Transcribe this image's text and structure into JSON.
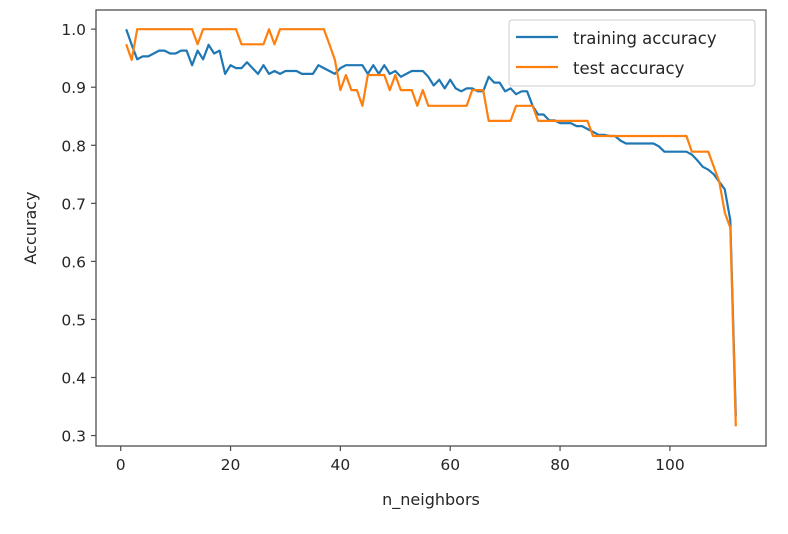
{
  "chart_data": {
    "type": "line",
    "title": "",
    "xlabel": "n_neighbors",
    "ylabel": "Accuracy",
    "xlim": [
      -4.5,
      117.5
    ],
    "ylim": [
      0.282,
      1.033
    ],
    "xticks": [
      0,
      20,
      40,
      60,
      80,
      100
    ],
    "xtick_labels": [
      "0",
      "20",
      "40",
      "60",
      "80",
      "100"
    ],
    "yticks": [
      0.3,
      0.4,
      0.5,
      0.6,
      0.7,
      0.8,
      0.9,
      1.0
    ],
    "ytick_labels": [
      "0.3",
      "0.4",
      "0.5",
      "0.6",
      "0.7",
      "0.8",
      "0.9",
      "1.0"
    ],
    "grid": false,
    "legend_position": "upper right",
    "x": [
      1,
      2,
      3,
      4,
      5,
      6,
      7,
      8,
      9,
      10,
      11,
      12,
      13,
      14,
      15,
      16,
      17,
      18,
      19,
      20,
      21,
      22,
      23,
      24,
      25,
      26,
      27,
      28,
      29,
      30,
      31,
      32,
      33,
      34,
      35,
      36,
      37,
      38,
      39,
      40,
      41,
      42,
      43,
      44,
      45,
      46,
      47,
      48,
      49,
      50,
      51,
      52,
      53,
      54,
      55,
      56,
      57,
      58,
      59,
      60,
      61,
      62,
      63,
      64,
      65,
      66,
      67,
      68,
      69,
      70,
      71,
      72,
      73,
      74,
      75,
      76,
      77,
      78,
      79,
      80,
      81,
      82,
      83,
      84,
      85,
      86,
      87,
      88,
      89,
      90,
      91,
      92,
      93,
      94,
      95,
      96,
      97,
      98,
      99,
      100,
      101,
      102,
      103,
      104,
      105,
      106,
      107,
      108,
      109,
      110,
      111,
      112
    ],
    "series": [
      {
        "name": "training accuracy",
        "color": "#1f77b4",
        "values": [
          1.0,
          0.973,
          0.948,
          0.953,
          0.953,
          0.958,
          0.963,
          0.963,
          0.958,
          0.958,
          0.963,
          0.963,
          0.938,
          0.963,
          0.948,
          0.973,
          0.958,
          0.963,
          0.923,
          0.938,
          0.933,
          0.933,
          0.943,
          0.933,
          0.923,
          0.938,
          0.923,
          0.928,
          0.923,
          0.928,
          0.928,
          0.928,
          0.923,
          0.923,
          0.923,
          0.938,
          0.933,
          0.928,
          0.923,
          0.933,
          0.938,
          0.938,
          0.938,
          0.938,
          0.923,
          0.938,
          0.923,
          0.938,
          0.923,
          0.928,
          0.918,
          0.923,
          0.928,
          0.928,
          0.928,
          0.918,
          0.903,
          0.913,
          0.898,
          0.913,
          0.898,
          0.893,
          0.898,
          0.898,
          0.893,
          0.893,
          0.918,
          0.908,
          0.908,
          0.893,
          0.898,
          0.888,
          0.893,
          0.893,
          0.868,
          0.853,
          0.853,
          0.843,
          0.843,
          0.838,
          0.838,
          0.838,
          0.833,
          0.833,
          0.828,
          0.823,
          0.818,
          0.818,
          0.816,
          0.816,
          0.808,
          0.803,
          0.803,
          0.803,
          0.803,
          0.803,
          0.803,
          0.798,
          0.789,
          0.789,
          0.789,
          0.789,
          0.789,
          0.784,
          0.774,
          0.763,
          0.758,
          0.75,
          0.737,
          0.724,
          0.671,
          0.333
        ]
      },
      {
        "name": "test accuracy",
        "color": "#ff7f0e",
        "values": [
          0.974,
          0.947,
          1.0,
          1.0,
          1.0,
          1.0,
          1.0,
          1.0,
          1.0,
          1.0,
          1.0,
          1.0,
          1.0,
          0.974,
          1.0,
          1.0,
          1.0,
          1.0,
          1.0,
          1.0,
          1.0,
          0.974,
          0.974,
          0.974,
          0.974,
          0.974,
          1.0,
          0.974,
          1.0,
          1.0,
          1.0,
          1.0,
          1.0,
          1.0,
          1.0,
          1.0,
          1.0,
          0.974,
          0.947,
          0.895,
          0.921,
          0.895,
          0.895,
          0.868,
          0.921,
          0.921,
          0.921,
          0.921,
          0.895,
          0.921,
          0.895,
          0.895,
          0.895,
          0.868,
          0.895,
          0.868,
          0.868,
          0.868,
          0.868,
          0.868,
          0.868,
          0.868,
          0.868,
          0.895,
          0.895,
          0.895,
          0.842,
          0.842,
          0.842,
          0.842,
          0.842,
          0.868,
          0.868,
          0.868,
          0.868,
          0.842,
          0.842,
          0.842,
          0.842,
          0.842,
          0.842,
          0.842,
          0.842,
          0.842,
          0.842,
          0.816,
          0.816,
          0.816,
          0.816,
          0.816,
          0.816,
          0.816,
          0.816,
          0.816,
          0.816,
          0.816,
          0.816,
          0.816,
          0.816,
          0.816,
          0.816,
          0.816,
          0.816,
          0.789,
          0.789,
          0.789,
          0.789,
          0.763,
          0.737,
          0.684,
          0.658,
          0.316
        ]
      }
    ]
  }
}
